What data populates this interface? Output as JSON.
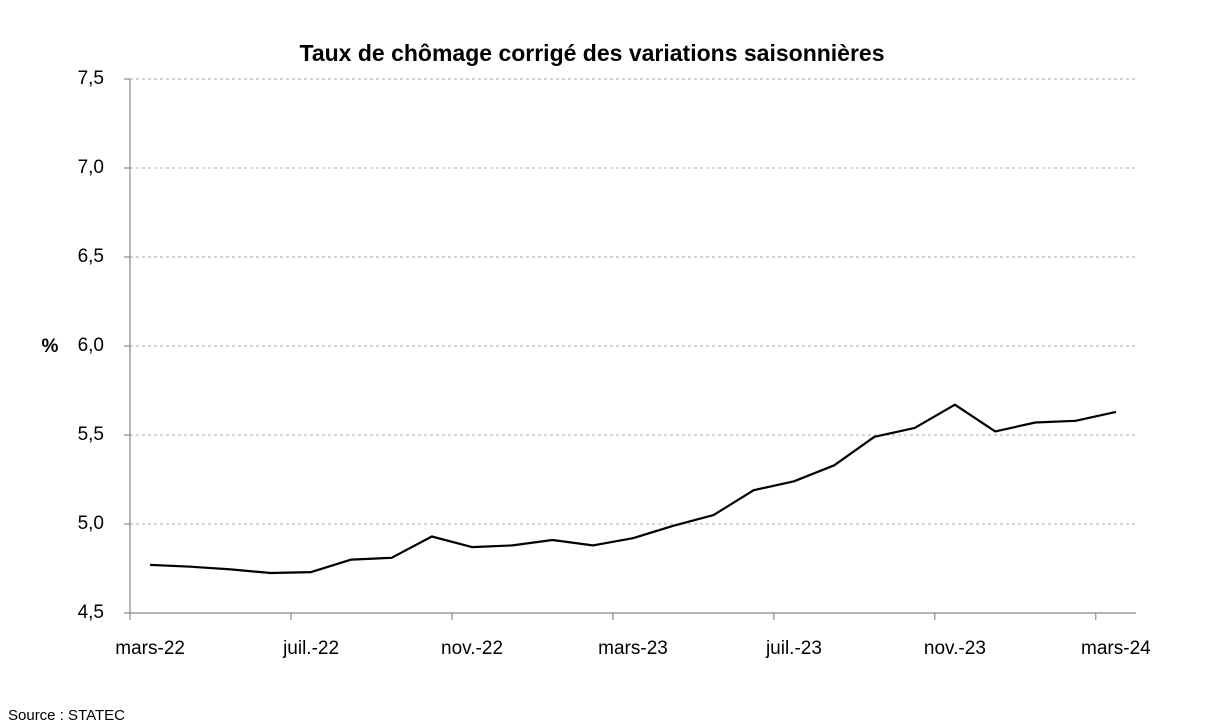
{
  "chart_data": {
    "type": "line",
    "title": "Taux de chômage corrigé des variations saisonnières",
    "y_label": "%",
    "source": "Source : STATEC",
    "categories": [
      "mars-22",
      null,
      null,
      null,
      "juil.-22",
      null,
      null,
      null,
      "nov.-22",
      null,
      null,
      null,
      "mars-23",
      null,
      null,
      null,
      "juil.-23",
      null,
      null,
      null,
      "nov.-23",
      null,
      null,
      null,
      "mars-24"
    ],
    "values": [
      4.77,
      4.76,
      4.745,
      4.725,
      4.73,
      4.8,
      4.81,
      4.93,
      4.87,
      4.88,
      4.91,
      4.88,
      4.92,
      4.99,
      5.05,
      5.19,
      5.24,
      5.33,
      5.49,
      5.54,
      5.67,
      5.52,
      5.57,
      5.58,
      5.63
    ],
    "color": "#000000",
    "ylim": [
      4.5,
      7.5
    ],
    "yticks": [
      {
        "value": 4.5,
        "label": "4,5"
      },
      {
        "value": 5.0,
        "label": "5,0"
      },
      {
        "value": 5.5,
        "label": "5,5"
      },
      {
        "value": 6.0,
        "label": "6,0"
      },
      {
        "value": 6.5,
        "label": "6,5"
      },
      {
        "value": 7.0,
        "label": "7,0"
      },
      {
        "value": 7.5,
        "label": "7,5"
      }
    ],
    "grid": true
  }
}
